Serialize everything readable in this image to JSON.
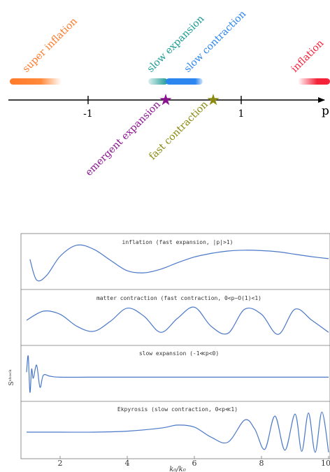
{
  "top_diagram": {
    "axis_symbol": "p",
    "ticks": [
      {
        "label": "-1",
        "value": -1
      },
      {
        "label": "1",
        "value": 1
      }
    ],
    "bars": [
      {
        "label": "super inflation",
        "color": "#ff7a2a"
      },
      {
        "label": "slow expansion",
        "color": "#1a9a94"
      },
      {
        "label": "slow contraction",
        "color": "#2b86f0"
      },
      {
        "label": "inflation",
        "color": "#f4233a"
      }
    ],
    "stars": [
      {
        "label": "emergent expansion",
        "color": "#8a1290"
      },
      {
        "label": "fast contraction",
        "color": "#8a8a10"
      }
    ]
  },
  "chart_data": {
    "type": "line",
    "xlabel": "k₀/k₀",
    "ylabel": "Sˢʰᵒᶜᵏ",
    "x_ticks": [
      "2",
      "4",
      "6",
      "8",
      "10"
    ],
    "xlim": [
      1,
      10
    ],
    "line_color": "#4a78c8",
    "panels": [
      {
        "title": "inflation (fast expansion, |p|>1)",
        "x": [
          1.1,
          1.3,
          1.6,
          2.0,
          2.5,
          3.0,
          3.5,
          4.0,
          4.5,
          5.0,
          5.5,
          6.0,
          6.5,
          7.0,
          7.5,
          8.0,
          8.5,
          9.0,
          9.5,
          10.0
        ],
        "y": [
          0.25,
          -0.78,
          -0.55,
          0.4,
          0.95,
          0.75,
          0.2,
          -0.32,
          -0.42,
          -0.24,
          0.08,
          0.36,
          0.54,
          0.66,
          0.7,
          0.68,
          0.62,
          0.5,
          0.38,
          0.28
        ]
      },
      {
        "title": "matter contraction (fast contraction, 0<p~O(1)<1)",
        "x": [
          1.0,
          1.5,
          2.0,
          2.5,
          3.0,
          3.5,
          4.0,
          4.5,
          5.0,
          5.5,
          6.0,
          6.5,
          7.0,
          7.5,
          8.0,
          8.5,
          9.0,
          9.5,
          10.0
        ],
        "y": [
          0.0,
          0.45,
          0.3,
          -0.3,
          -0.55,
          -0.05,
          0.6,
          0.2,
          -0.6,
          0.1,
          0.65,
          -0.3,
          -0.65,
          0.55,
          0.3,
          -0.7,
          0.55,
          0.0,
          -0.6
        ]
      },
      {
        "title": "slow expansion (-1≪p<0)",
        "x": [
          1.0,
          1.05,
          1.1,
          1.15,
          1.2,
          1.3,
          1.4,
          1.5,
          1.7,
          2.0,
          3.0,
          5.0,
          7.0,
          10.0
        ],
        "y": [
          0.2,
          1.0,
          -0.8,
          0.35,
          -0.1,
          0.55,
          -0.55,
          0.05,
          0.0,
          -0.05,
          -0.05,
          -0.05,
          -0.05,
          -0.05
        ]
      },
      {
        "title": "Ekpyrosis (slow contraction, 0<p≪1)",
        "x": [
          1.0,
          2.0,
          3.0,
          4.0,
          5.0,
          5.5,
          6.0,
          6.5,
          7.0,
          7.5,
          7.8,
          8.1,
          8.4,
          8.7,
          9.0,
          9.2,
          9.4,
          9.6,
          9.8,
          10.0
        ],
        "y": [
          0.0,
          0.0,
          0.0,
          0.05,
          0.2,
          0.35,
          0.25,
          -0.25,
          -0.5,
          0.6,
          0.15,
          -0.85,
          0.8,
          -0.9,
          0.9,
          -0.95,
          0.95,
          -1.0,
          1.0,
          -1.0
        ]
      }
    ]
  }
}
